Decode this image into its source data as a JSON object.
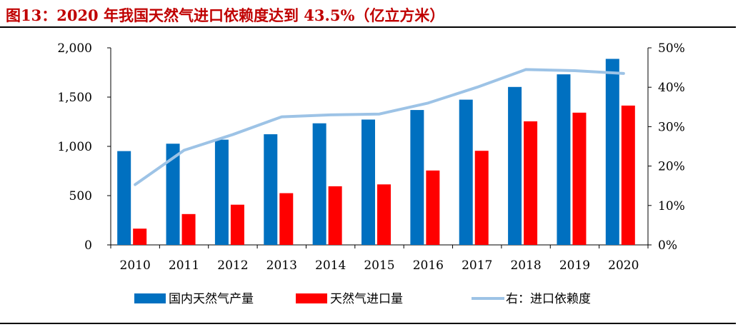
{
  "figure": {
    "title": "图13：2020 年我国天然气进口依赖度达到 43.5%（亿立方米）"
  },
  "colors": {
    "domestic": "#0070c0",
    "imports": "#ff0000",
    "dependency": "#9dc3e6",
    "title": "#c00000"
  },
  "chart_data": {
    "type": "bar",
    "categories": [
      "2010",
      "2011",
      "2012",
      "2013",
      "2014",
      "2015",
      "2016",
      "2017",
      "2018",
      "2019",
      "2020"
    ],
    "series": [
      {
        "name": "国内天然气产量",
        "type": "bar",
        "axis": "left",
        "values": [
          952,
          1027,
          1068,
          1123,
          1234,
          1272,
          1369,
          1474,
          1603,
          1731,
          1888
        ]
      },
      {
        "name": "天然气进口量",
        "type": "bar",
        "axis": "left",
        "values": [
          165,
          313,
          408,
          525,
          595,
          614,
          755,
          955,
          1254,
          1342,
          1414
        ]
      },
      {
        "name": "右：进口依赖度",
        "type": "line",
        "axis": "right",
        "values": [
          15.3,
          24.0,
          28.0,
          32.5,
          33.0,
          33.2,
          36.0,
          40.0,
          44.5,
          44.2,
          43.5
        ]
      }
    ],
    "y_left": {
      "min": 0,
      "max": 2000,
      "ticks": [
        "0",
        "500",
        "1,000",
        "1,500",
        "2,000"
      ]
    },
    "y_right": {
      "min": 0,
      "max": 50,
      "ticks": [
        "0%",
        "10%",
        "20%",
        "30%",
        "40%",
        "50%"
      ]
    },
    "legend_position": "bottom",
    "grid": false
  }
}
